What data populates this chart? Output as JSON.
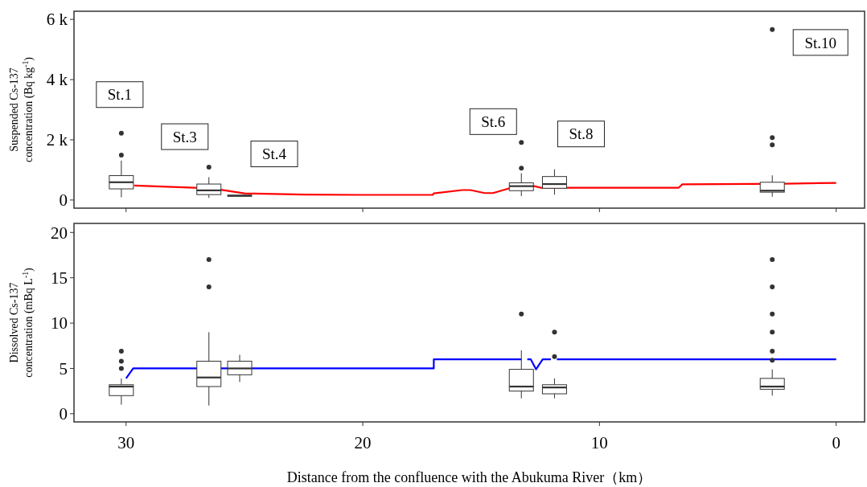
{
  "chart_data": [
    {
      "type": "box",
      "ylabel": "Suspended Cs-137\nconcentration (Bq kg$^{-1}$)",
      "x": [
        30.2,
        26.5,
        25.2,
        13.3,
        11.9,
        2.7
      ],
      "boxes": [
        {
          "low": 90,
          "q1": 370,
          "median": 590,
          "q3": 810,
          "high": 1310,
          "outliers": [
            1490,
            2220
          ]
        },
        {
          "low": 70,
          "q1": 180,
          "median": 320,
          "q3": 530,
          "high": 760,
          "outliers": [
            1090
          ]
        },
        {
          "low": 120,
          "q1": 130,
          "median": 140,
          "q3": 160,
          "high": 170
        },
        {
          "low": 130,
          "q1": 310,
          "median": 460,
          "q3": 570,
          "high": 890,
          "outliers": [
            1060,
            1910
          ]
        },
        {
          "low": 180,
          "q1": 390,
          "median": 530,
          "q3": 780,
          "high": 1020
        },
        {
          "low": 110,
          "q1": 260,
          "median": 310,
          "q3": 590,
          "high": 820,
          "outliers": [
            1830,
            2070,
            5660
          ]
        }
      ],
      "series": [
        {
          "type": "line",
          "color": "#ff0000",
          "x": [
            29.66,
            27.1,
            26.0,
            25.0,
            22.45,
            20.1,
            17.05,
            17.0,
            15.8,
            15.45,
            14.85,
            14.5,
            13.8,
            12.75,
            12.5,
            11.1,
            6.65,
            6.5,
            2.2,
            0
          ],
          "values": [
            480,
            410,
            340,
            220,
            180,
            170,
            170,
            220,
            330,
            330,
            230,
            230,
            390,
            460,
            410,
            410,
            410,
            520,
            540,
            570
          ]
        }
      ],
      "annotations": [
        "St.1",
        "St.3",
        "St.4",
        "St.6",
        "St.8",
        "St.10"
      ],
      "xlim": [
        32.2,
        -1.2
      ],
      "xticks": [
        30,
        20,
        10,
        0
      ],
      "ylim": [
        -270,
        6270
      ],
      "yticks": [
        {
          "value": 0,
          "label": "0"
        },
        {
          "value": 2000,
          "label": "2 k"
        },
        {
          "value": 4000,
          "label": "4 k"
        },
        {
          "value": 6000,
          "label": "6 k"
        }
      ],
      "tick_labels": "y"
    },
    {
      "type": "box",
      "ylabel": "Dissolved Cs-137\nconcentration (mBq L$^{-1}$)",
      "xlabel": "Distance from the confluence with the Abukuma River（km）",
      "x": [
        30.2,
        26.5,
        25.2,
        13.3,
        11.9,
        2.7
      ],
      "boxes": [
        {
          "low": 1.0,
          "q1": 2.0,
          "median": 3.0,
          "q3": 3.2,
          "high": 3.9,
          "outliers": [
            5.0,
            5.8,
            6.9
          ]
        },
        {
          "low": 0.9,
          "q1": 3.0,
          "median": 4.0,
          "q3": 5.8,
          "high": 9.0,
          "outliers": [
            14,
            17
          ]
        },
        {
          "low": 3.5,
          "q1": 4.3,
          "median": 5.0,
          "q3": 5.8,
          "high": 6.5
        },
        {
          "low": 1.7,
          "q1": 2.5,
          "median": 3.0,
          "q3": 4.9,
          "high": 7.0,
          "outliers": [
            11
          ]
        },
        {
          "low": 1.7,
          "q1": 2.2,
          "median": 2.9,
          "q3": 3.2,
          "high": 3.9,
          "outliers": [
            6.3,
            9.0
          ]
        },
        {
          "low": 2.0,
          "q1": 2.7,
          "median": 3.0,
          "q3": 3.9,
          "high": 4.9,
          "outliers": [
            5.9,
            6.9,
            9.0,
            11,
            14,
            17
          ]
        }
      ],
      "series": [
        {
          "type": "line",
          "color": "#0000ff",
          "x": [
            30,
            29.7,
            17.0,
            17.0,
            13.3,
            13.25,
            13.05,
            12.9,
            12.68,
            12.4,
            12.05,
            11.95,
            11.8,
            0
          ],
          "values": [
            3.9,
            5,
            5,
            6,
            6,
            null,
            6,
            6,
            4.9,
            6,
            6,
            null,
            6,
            6
          ]
        }
      ],
      "xlim": [
        32.2,
        -1.2
      ],
      "xticks": [
        30,
        20,
        10,
        0
      ],
      "ylim": [
        -0.9,
        21
      ],
      "yticks": [
        0,
        5,
        10,
        15,
        20
      ]
    }
  ]
}
